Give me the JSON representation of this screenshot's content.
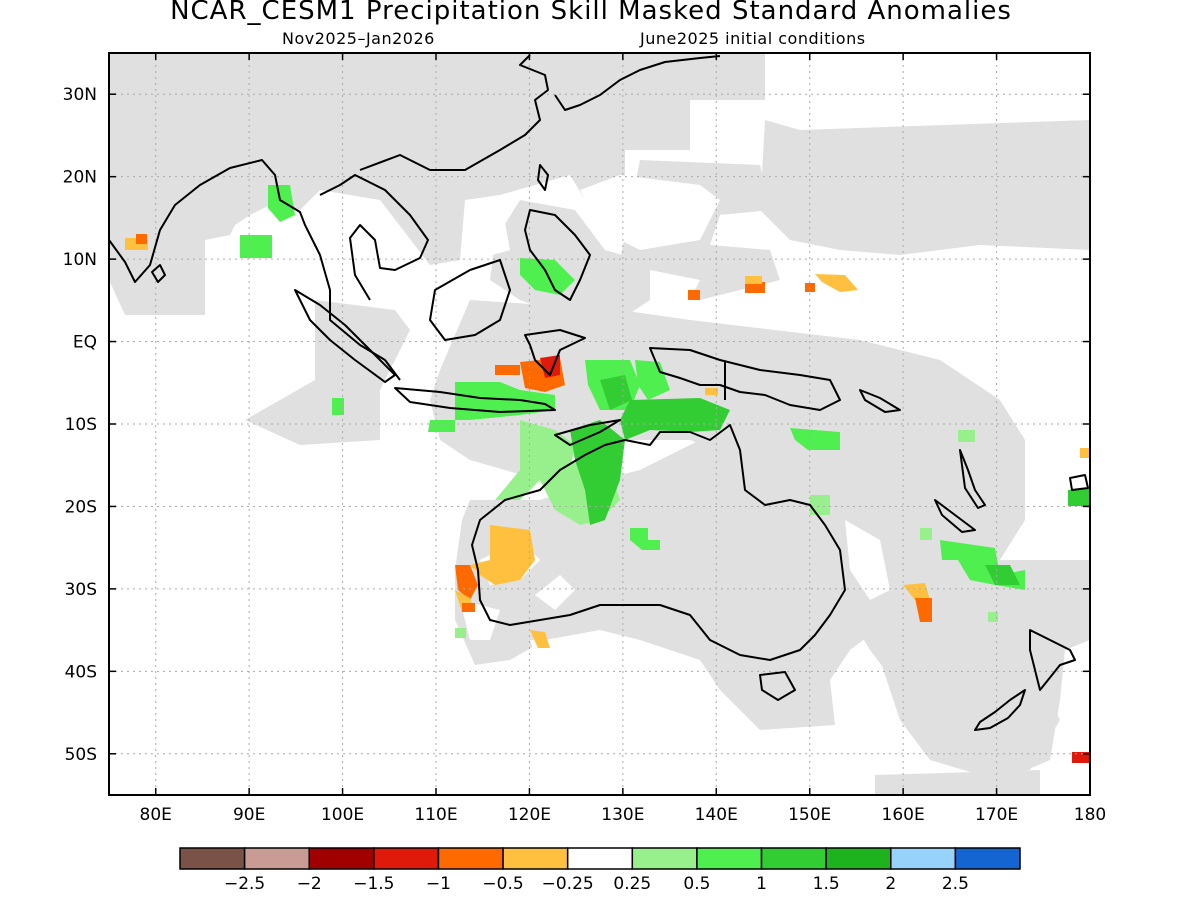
{
  "title": "NCAR_CESM1 Precipitation Skill Masked Standard Anomalies",
  "subtitle_left": "Nov2025–Jan2026",
  "subtitle_right": "June2025 initial conditions",
  "lat_labels": [
    "30N",
    "20N",
    "10N",
    "EQ",
    "10S",
    "20S",
    "30S",
    "40S",
    "50S"
  ],
  "lon_labels": [
    "80E",
    "90E",
    "100E",
    "110E",
    "120E",
    "130E",
    "140E",
    "150E",
    "160E",
    "170E",
    "180"
  ],
  "colorbar": {
    "colors": [
      "#7a5248",
      "#c89c94",
      "#a00000",
      "#e01a0a",
      "#ff6a00",
      "#ffc040",
      "#ffffff",
      "#98f08c",
      "#50ef50",
      "#32cd32",
      "#1eb31e",
      "#96d2fa",
      "#1464d2"
    ],
    "labels": [
      "−2.5",
      "−2",
      "−1.5",
      "−1",
      "−0.5",
      "−0.25",
      "0.25",
      "0.5",
      "1",
      "1.5",
      "2",
      "2.5"
    ]
  },
  "map_colors": {
    "no_skill_mask": "#e0e0e0",
    "coastline": "#000000",
    "grid": "#aaaaaa"
  }
}
